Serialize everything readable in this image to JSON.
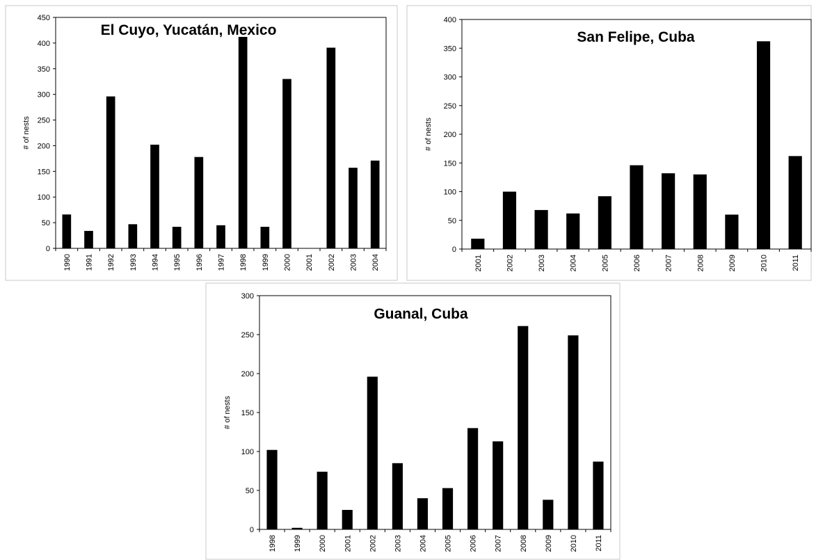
{
  "chart_data": [
    {
      "type": "bar",
      "title": "El Cuyo, Yucatán, Mexico",
      "xlabel": "",
      "ylabel": "# of nests",
      "ylim": [
        0,
        450
      ],
      "yticks": [
        0,
        50,
        100,
        150,
        200,
        250,
        300,
        350,
        400,
        450
      ],
      "categories": [
        "1990",
        "1991",
        "1992",
        "1993",
        "1994",
        "1995",
        "1996",
        "1997",
        "1998",
        "1999",
        "2000",
        "2001",
        "2002",
        "2003",
        "2004"
      ],
      "values": [
        66,
        34,
        296,
        47,
        202,
        42,
        178,
        45,
        412,
        42,
        330,
        0,
        391,
        157,
        171
      ],
      "bar_color": "#000000",
      "grid": false
    },
    {
      "type": "bar",
      "title": "San Felipe, Cuba",
      "xlabel": "",
      "ylabel": "# of nests",
      "ylim": [
        0,
        400
      ],
      "yticks": [
        0,
        50,
        100,
        150,
        200,
        250,
        300,
        350,
        400
      ],
      "categories": [
        "2001",
        "2002",
        "2003",
        "2004",
        "2005",
        "2006",
        "2007",
        "2008",
        "2009",
        "2010",
        "2011"
      ],
      "values": [
        18,
        100,
        68,
        62,
        92,
        146,
        132,
        130,
        60,
        362,
        162
      ],
      "bar_color": "#000000",
      "grid": false
    },
    {
      "type": "bar",
      "title": "Guanal, Cuba",
      "xlabel": "",
      "ylabel": "# of nests",
      "ylim": [
        0,
        300
      ],
      "yticks": [
        0,
        50,
        100,
        150,
        200,
        250,
        300
      ],
      "categories": [
        "1998",
        "1999",
        "2000",
        "2001",
        "2002",
        "2003",
        "2004",
        "2005",
        "2006",
        "2007",
        "2008",
        "2009",
        "2010",
        "2011"
      ],
      "values": [
        102,
        2,
        74,
        25,
        196,
        85,
        40,
        53,
        130,
        113,
        261,
        38,
        249,
        87
      ],
      "bar_color": "#000000",
      "grid": false
    }
  ]
}
